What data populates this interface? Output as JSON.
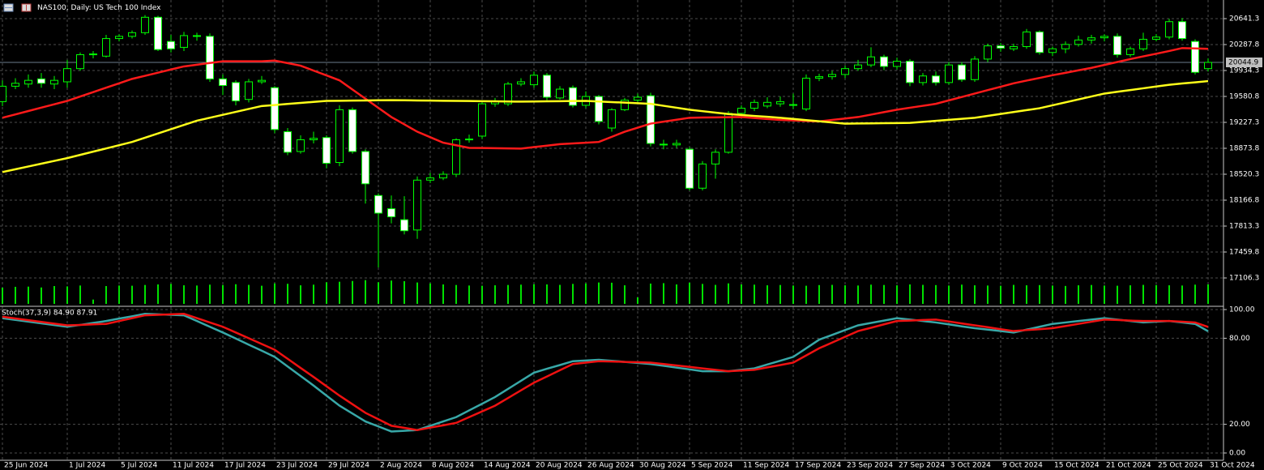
{
  "chart_data": [
    {
      "type": "candlestick",
      "title": "NAS100, Daily:  US Tech 100 Index",
      "categories": [
        "25 Jun 2024",
        null,
        null,
        null,
        null,
        "1 Jul 2024",
        null,
        null,
        null,
        "5 Jul 2024",
        null,
        null,
        null,
        "11 Jul 2024",
        null,
        null,
        null,
        "17 Jul 2024",
        null,
        null,
        null,
        "23 Jul 2024",
        null,
        null,
        null,
        "29 Jul 2024",
        null,
        null,
        null,
        "2 Aug 2024",
        null,
        null,
        null,
        "8 Aug 2024",
        null,
        null,
        null,
        "14 Aug 2024",
        null,
        null,
        null,
        "20 Aug 2024",
        null,
        null,
        null,
        "26 Aug 2024",
        null,
        null,
        null,
        "30 Aug 2024",
        null,
        null,
        null,
        "5 Sep 2024",
        null,
        null,
        null,
        "11 Sep 2024",
        null,
        null,
        null,
        "17 Sep 2024",
        null,
        null,
        null,
        "23 Sep 2024",
        null,
        null,
        null,
        "27 Sep 2024",
        null,
        null,
        null,
        "3 Oct 2024",
        null,
        null,
        null,
        "9 Oct 2024",
        null,
        null,
        null,
        "15 Oct 2024",
        null,
        null,
        null,
        "21 Oct 2024",
        null,
        null,
        null,
        "25 Oct 2024",
        null,
        null,
        null,
        "31 Oct 2024"
      ],
      "open": [
        19510,
        19720,
        19750,
        19820,
        19750,
        19780,
        19960,
        20150,
        20130,
        20370,
        20400,
        20450,
        20660,
        20330,
        20250,
        20400,
        20400,
        19820,
        19770,
        19540,
        19780,
        19700,
        19100,
        18830,
        18990,
        19020,
        18680,
        19400,
        18830,
        18230,
        18050,
        17900,
        17760,
        18440,
        18470,
        18520,
        18990,
        19040,
        19480,
        19480,
        19750,
        19740,
        19870,
        19560,
        19700,
        19460,
        19580,
        19150,
        19400,
        19530,
        19590,
        18930,
        18920,
        18860,
        18330,
        18660,
        18820,
        19350,
        19420,
        19450,
        19480,
        19470,
        19410,
        19830,
        19850,
        19880,
        19960,
        20010,
        20120,
        19990,
        20060,
        19770,
        19860,
        19770,
        20010,
        19810,
        20090,
        20270,
        20230,
        20260,
        20460,
        20180,
        20230,
        20290,
        20350,
        20380,
        20400,
        20150,
        20230,
        20360,
        20390,
        20600,
        20330,
        19960
      ],
      "high": [
        19800,
        19830,
        19880,
        19900,
        19860,
        20080,
        20180,
        20200,
        20420,
        20430,
        20480,
        20690,
        20680,
        20420,
        20460,
        20450,
        20440,
        19880,
        19800,
        19820,
        19860,
        19720,
        19150,
        19050,
        19100,
        19050,
        19460,
        19430,
        18860,
        18260,
        18230,
        18220,
        18490,
        18540,
        18560,
        19010,
        19060,
        19520,
        19560,
        19780,
        19830,
        19920,
        19900,
        19720,
        19730,
        19650,
        19600,
        19420,
        19560,
        19620,
        19630,
        18990,
        18990,
        18890,
        18700,
        18860,
        19380,
        19460,
        19540,
        19570,
        19580,
        19620,
        19880,
        19890,
        19930,
        20000,
        20080,
        20250,
        20150,
        20110,
        20090,
        19900,
        19920,
        20050,
        20050,
        20130,
        20300,
        20310,
        20300,
        20500,
        20480,
        20260,
        20330,
        20410,
        20420,
        20430,
        20440,
        20260,
        20450,
        20430,
        20640,
        20650,
        20360,
        20100
      ],
      "low": [
        19450,
        19680,
        19700,
        19700,
        19680,
        19700,
        19930,
        20100,
        20110,
        20330,
        20370,
        20420,
        20200,
        20180,
        20200,
        20340,
        19780,
        19600,
        19460,
        19500,
        19750,
        19080,
        18780,
        18800,
        18940,
        18600,
        18630,
        18800,
        18120,
        17250,
        17850,
        17700,
        17640,
        18400,
        18440,
        18480,
        18950,
        19000,
        19440,
        19450,
        19720,
        19700,
        19530,
        19540,
        19430,
        19420,
        19200,
        19100,
        19380,
        19500,
        18900,
        18860,
        18880,
        18300,
        18300,
        18460,
        18800,
        19300,
        19380,
        19420,
        19440,
        19410,
        19380,
        19790,
        19810,
        19830,
        19930,
        19980,
        19940,
        19950,
        19720,
        19730,
        19730,
        19740,
        19780,
        19780,
        20050,
        20190,
        20200,
        20230,
        20150,
        20130,
        20170,
        20260,
        20300,
        20330,
        20110,
        20120,
        20200,
        20330,
        20360,
        20340,
        19880,
        19920
      ],
      "close": [
        19720,
        19760,
        19800,
        19760,
        19800,
        19960,
        20150,
        20160,
        20370,
        20400,
        20450,
        20660,
        20220,
        20230,
        20410,
        20410,
        19820,
        19730,
        19520,
        19780,
        19800,
        19130,
        18820,
        18990,
        19010,
        18670,
        19400,
        18830,
        18390,
        17990,
        17940,
        17750,
        18440,
        18470,
        18520,
        18990,
        19000,
        19480,
        19510,
        19750,
        19780,
        19870,
        19570,
        19680,
        19460,
        19580,
        19240,
        19400,
        19530,
        19570,
        18940,
        18920,
        18940,
        18330,
        18660,
        18820,
        19350,
        19420,
        19500,
        19500,
        19510,
        19460,
        19830,
        19850,
        19880,
        19960,
        20010,
        20120,
        19990,
        20060,
        19770,
        19860,
        19770,
        20010,
        19810,
        20090,
        20270,
        20240,
        20260,
        20460,
        20180,
        20230,
        20290,
        20350,
        20380,
        20400,
        20150,
        20230,
        20360,
        20390,
        20600,
        20370,
        19910,
        20044.9
      ],
      "bull_color": "#000000",
      "bear_color": "#ffffff",
      "wick_color": "#00ff00",
      "overlays": [
        {
          "color": "#ff1a1a",
          "values": [
            19290,
            19336,
            19382,
            19428,
            19474,
            19520,
            19580,
            19640,
            19700,
            19760,
            19820,
            19862,
            19905,
            19948,
            19990,
            20013,
            20037,
            20060,
            20060,
            20060,
            20060,
            20070,
            20035,
            20000,
            19933,
            19867,
            19800,
            19675,
            19550,
            19425,
            19300,
            19200,
            19100,
            19025,
            18950,
            18915,
            18880,
            18878,
            18875,
            18873,
            18870,
            18890,
            18910,
            18930,
            18940,
            18950,
            18960,
            19030,
            19100,
            19155,
            19210,
            19237,
            19263,
            19290,
            19293,
            19295,
            19298,
            19300,
            19287,
            19273,
            19260,
            19253,
            19247,
            19240,
            19260,
            19280,
            19300,
            19333,
            19367,
            19400,
            19427,
            19453,
            19480,
            19527,
            19573,
            19620,
            19667,
            19713,
            19760,
            19797,
            19833,
            19870,
            19903,
            19937,
            19970,
            20010,
            20050,
            20090,
            20127,
            20163,
            20200,
            20240,
            20235,
            20230
          ]
        },
        {
          "color": "#ffff1a",
          "values": [
            18550,
            18588,
            18626,
            18664,
            18702,
            18740,
            18784,
            18828,
            18872,
            18916,
            18960,
            19018,
            19076,
            19134,
            19192,
            19250,
            19290,
            19330,
            19370,
            19410,
            19450,
            19464,
            19478,
            19492,
            19506,
            19520,
            19522,
            19524,
            19526,
            19528,
            19530,
            19528,
            19526,
            19524,
            19522,
            19520,
            19518,
            19516,
            19514,
            19512,
            19510,
            19512,
            19514,
            19516,
            19518,
            19520,
            19512,
            19504,
            19496,
            19488,
            19480,
            19453,
            19427,
            19400,
            19380,
            19360,
            19340,
            19328,
            19315,
            19303,
            19290,
            19274,
            19258,
            19242,
            19226,
            19210,
            19212,
            19214,
            19216,
            19218,
            19220,
            19234,
            19248,
            19262,
            19276,
            19290,
            19316,
            19342,
            19368,
            19394,
            19420,
            19460,
            19500,
            19540,
            19580,
            19620,
            19644,
            19668,
            19692,
            19716,
            19740,
            19757,
            19773,
            19790
          ]
        }
      ],
      "volume": {
        "color": "#00e000",
        "ylim": [
          0,
          300000
        ],
        "values": [
          150000,
          158000,
          160000,
          152000,
          165000,
          162000,
          170000,
          40000,
          165000,
          170000,
          168000,
          175000,
          180000,
          185000,
          172000,
          170000,
          178000,
          175000,
          182000,
          176000,
          168000,
          190000,
          186000,
          172000,
          178000,
          200000,
          205000,
          212000,
          220000,
          200000,
          216000,
          210000,
          198000,
          190000,
          180000,
          175000,
          170000,
          168000,
          172000,
          175000,
          178000,
          182000,
          180000,
          176000,
          185000,
          190000,
          198000,
          196000,
          172000,
          60000,
          188000,
          192000,
          180000,
          196000,
          185000,
          176000,
          190000,
          180000,
          178000,
          172000,
          175000,
          170000,
          168000,
          174000,
          176000,
          172000,
          170000,
          178000,
          175000,
          172000,
          180000,
          176000,
          174000,
          170000,
          178000,
          172000,
          170000,
          168000,
          176000,
          172000,
          174000,
          170000,
          166000,
          172000,
          175000,
          170000,
          168000,
          172000,
          176000,
          174000,
          172000,
          170000,
          178000,
          180000
        ]
      },
      "last_price": 20044.9,
      "ylim": [
        16719.7,
        20895.4
      ],
      "yticks": [
        20641.3,
        20287.8,
        19934.3,
        19580.8,
        19227.3,
        18873.8,
        18520.3,
        18166.8,
        17813.3,
        17459.8,
        17106.3
      ],
      "grid": true
    },
    {
      "type": "line",
      "title": "Stoch(37,3,9) 84.90 87.91",
      "series": [
        {
          "color": "#38a8a8",
          "values": [
            94,
            92.8,
            91.6,
            90.4,
            89.2,
            88,
            89.3,
            90.7,
            92,
            93.7,
            95.3,
            97,
            96.7,
            96.3,
            96,
            92,
            88,
            84,
            79.8,
            75.5,
            71.3,
            67,
            60.3,
            53.7,
            47,
            40,
            33,
            27.5,
            22,
            18.5,
            15,
            15.5,
            16,
            19,
            22,
            25,
            29.7,
            34.3,
            39,
            44.7,
            50.3,
            56,
            58.7,
            61.3,
            64,
            64.5,
            65,
            64.3,
            63.5,
            62.8,
            62,
            60.8,
            59.5,
            58.3,
            57,
            57,
            57,
            58,
            59,
            61.7,
            64.3,
            67,
            73,
            79,
            82.3,
            85.7,
            89,
            90.7,
            92.3,
            94,
            93,
            92,
            91,
            89.7,
            88.3,
            87,
            86,
            85,
            84,
            86,
            88,
            90,
            91,
            92,
            93,
            94,
            93,
            92,
            91,
            91.5,
            92,
            91,
            90,
            84.9
          ]
        },
        {
          "color": "#ee1111",
          "values": [
            95,
            93.8,
            92.6,
            91.4,
            90.2,
            89,
            89.3,
            89.7,
            90,
            92,
            94,
            96,
            96.3,
            96.7,
            97,
            94,
            91,
            88,
            84,
            80,
            76,
            72,
            65.7,
            59.3,
            53,
            46.5,
            40,
            34,
            28,
            23.5,
            19,
            17.5,
            16,
            17.7,
            19.3,
            21,
            25,
            29,
            33,
            38.3,
            43.7,
            49,
            53.3,
            57.7,
            62,
            63,
            64,
            63.8,
            63.5,
            63.3,
            63,
            62,
            61,
            60,
            59,
            58,
            57,
            57.5,
            58,
            59.7,
            61.3,
            63,
            68,
            73,
            77,
            81,
            85,
            87.3,
            89.7,
            92,
            92.3,
            92.7,
            93,
            91.7,
            90.3,
            89,
            87.7,
            86.3,
            85,
            85.7,
            86.3,
            87,
            88.5,
            90,
            91.5,
            93,
            92.7,
            92.3,
            92,
            92,
            92,
            91.5,
            91,
            87.91
          ]
        }
      ],
      "ylim": [
        -5.08,
        102.26
      ],
      "yticks": [
        {
          "value": 100,
          "label": "100.00"
        },
        {
          "value": 80,
          "label": "80.00"
        },
        {
          "value": 20,
          "label": "20.00"
        },
        {
          "value": 0,
          "label": "0.00"
        }
      ],
      "grid": true
    }
  ]
}
